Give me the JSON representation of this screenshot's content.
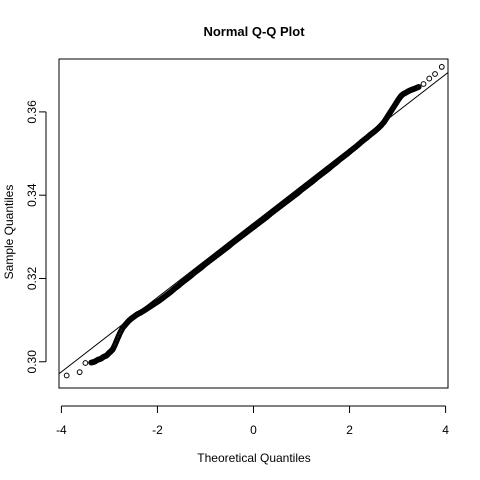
{
  "chart_data": {
    "type": "scatter",
    "title": "Normal Q-Q Plot",
    "xlabel": "Theoretical Quantiles",
    "ylabel": "Sample Quantiles",
    "xlim": [
      -4.05,
      4.05
    ],
    "ylim": [
      0.2937,
      0.3727
    ],
    "x_ticks": [
      -4,
      -2,
      0,
      2,
      4
    ],
    "x_tick_labels": [
      "-4",
      "-2",
      "0",
      "2",
      "4"
    ],
    "y_ticks": [
      0.3,
      0.32,
      0.34,
      0.36
    ],
    "y_tick_labels": [
      "0.30",
      "0.32",
      "0.34",
      "0.36"
    ],
    "grid": false,
    "reference_line": {
      "slope": 0.00893,
      "intercept": 0.3333
    },
    "marker": "open-circle",
    "series": [
      {
        "points": [
          [
            -3.89,
            0.2967
          ],
          [
            -3.62,
            0.2975
          ],
          [
            -3.5,
            0.2997
          ],
          [
            -3.38,
            0.2998
          ],
          [
            -3.31,
            0.3
          ],
          [
            -3.24,
            0.3005
          ],
          [
            -3.18,
            0.3007
          ],
          [
            -3.12,
            0.3012
          ],
          [
            -3.06,
            0.3015
          ],
          [
            -3.01,
            0.3021
          ],
          [
            -2.97,
            0.3025
          ],
          [
            -2.93,
            0.303
          ],
          [
            -2.88,
            0.3042
          ],
          [
            -2.83,
            0.3056
          ],
          [
            -2.78,
            0.3069
          ],
          [
            -2.72,
            0.3082
          ],
          [
            -2.66,
            0.309
          ],
          [
            -2.6,
            0.3098
          ],
          [
            -2.54,
            0.3104
          ],
          [
            -2.48,
            0.3109
          ],
          [
            -2.42,
            0.3114
          ],
          [
            -2.35,
            0.3118
          ],
          [
            -2.28,
            0.3123
          ],
          [
            -2.2,
            0.3129
          ],
          [
            -2.12,
            0.3135
          ],
          [
            -2.04,
            0.3141
          ],
          [
            -1.96,
            0.3147
          ],
          [
            -1.88,
            0.3154
          ],
          [
            -1.8,
            0.3161
          ],
          [
            -1.72,
            0.3168
          ],
          [
            -1.64,
            0.3176
          ],
          [
            -1.56,
            0.3183
          ],
          [
            -1.48,
            0.3191
          ],
          [
            -1.4,
            0.3198
          ],
          [
            -1.32,
            0.3205
          ],
          [
            -1.24,
            0.3213
          ],
          [
            -1.16,
            0.322
          ],
          [
            -1.08,
            0.3227
          ],
          [
            -1.0,
            0.3235
          ],
          [
            -0.92,
            0.3242
          ],
          [
            -0.84,
            0.3249
          ],
          [
            -0.76,
            0.3256
          ],
          [
            -0.68,
            0.3263
          ],
          [
            -0.6,
            0.327
          ],
          [
            -0.52,
            0.3277
          ],
          [
            -0.44,
            0.3285
          ],
          [
            -0.36,
            0.3292
          ],
          [
            -0.28,
            0.3299
          ],
          [
            -0.2,
            0.3306
          ],
          [
            -0.12,
            0.3313
          ],
          [
            -0.04,
            0.332
          ],
          [
            0.04,
            0.3327
          ],
          [
            0.12,
            0.3334
          ],
          [
            0.2,
            0.3341
          ],
          [
            0.28,
            0.3348
          ],
          [
            0.36,
            0.3356
          ],
          [
            0.44,
            0.3363
          ],
          [
            0.52,
            0.337
          ],
          [
            0.6,
            0.3377
          ],
          [
            0.68,
            0.3384
          ],
          [
            0.76,
            0.3391
          ],
          [
            0.84,
            0.3398
          ],
          [
            0.92,
            0.3405
          ],
          [
            1.0,
            0.3413
          ],
          [
            1.08,
            0.342
          ],
          [
            1.16,
            0.3427
          ],
          [
            1.24,
            0.3434
          ],
          [
            1.32,
            0.3442
          ],
          [
            1.4,
            0.3449
          ],
          [
            1.48,
            0.3456
          ],
          [
            1.56,
            0.3463
          ],
          [
            1.64,
            0.3471
          ],
          [
            1.72,
            0.3478
          ],
          [
            1.8,
            0.3486
          ],
          [
            1.88,
            0.3493
          ],
          [
            1.96,
            0.35
          ],
          [
            2.04,
            0.3508
          ],
          [
            2.12,
            0.3515
          ],
          [
            2.2,
            0.3523
          ],
          [
            2.28,
            0.3531
          ],
          [
            2.36,
            0.3538
          ],
          [
            2.44,
            0.3546
          ],
          [
            2.52,
            0.3553
          ],
          [
            2.6,
            0.3561
          ],
          [
            2.66,
            0.3568
          ],
          [
            2.72,
            0.3576
          ],
          [
            2.77,
            0.3585
          ],
          [
            2.82,
            0.3594
          ],
          [
            2.87,
            0.3603
          ],
          [
            2.92,
            0.3612
          ],
          [
            2.97,
            0.3621
          ],
          [
            3.02,
            0.363
          ],
          [
            3.07,
            0.3638
          ],
          [
            3.12,
            0.3643
          ],
          [
            3.17,
            0.3646
          ],
          [
            3.23,
            0.365
          ],
          [
            3.29,
            0.3653
          ],
          [
            3.36,
            0.3656
          ],
          [
            3.44,
            0.366
          ],
          [
            3.54,
            0.3667
          ],
          [
            3.66,
            0.368
          ],
          [
            3.78,
            0.3691
          ],
          [
            3.92,
            0.3708
          ]
        ]
      }
    ]
  }
}
